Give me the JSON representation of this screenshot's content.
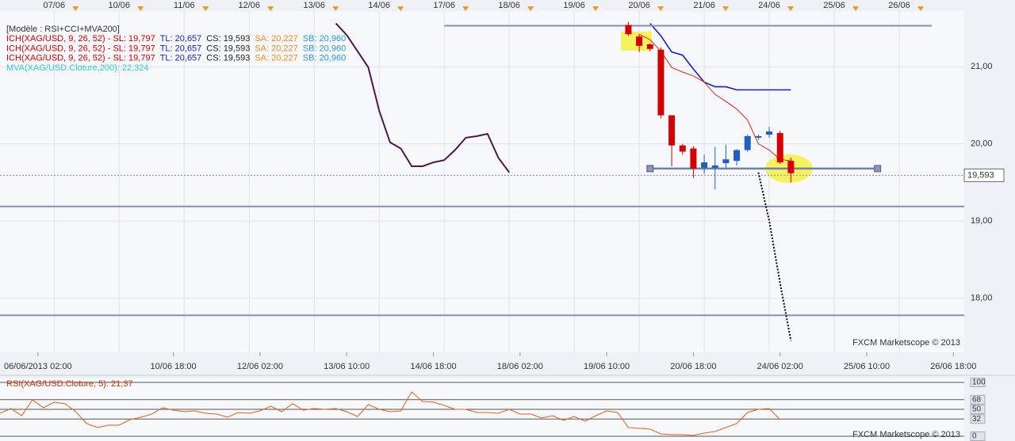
{
  "chart_data": [
    {
      "type": "candlestick",
      "header": "[Modèle : RSI+CCI+MVA200]",
      "indicators": [
        {
          "parts": [
            {
              "text": "ICH(XAG/USD, 9, 26, 52) -  SL: 19,797",
              "color": "#d40000"
            },
            {
              "text": "TL: 20,657",
              "color": "#1a1ad0"
            },
            {
              "text": "CS: 19,593",
              "color": "#222222"
            },
            {
              "text": "SA: 20,227",
              "color": "#f08a24"
            },
            {
              "text": "SB: 20,960",
              "color": "#2a9ad8"
            }
          ]
        },
        {
          "parts": [
            {
              "text": "ICH(XAG/USD, 9, 26, 52) -  SL: 19,797",
              "color": "#d40000"
            },
            {
              "text": "TL: 20,657",
              "color": "#1a1ad0"
            },
            {
              "text": "CS: 19,593",
              "color": "#222222"
            },
            {
              "text": "SA: 20,227",
              "color": "#f08a24"
            },
            {
              "text": "SB: 20,960",
              "color": "#2a9ad8"
            }
          ]
        },
        {
          "parts": [
            {
              "text": "ICH(XAG/USD, 9, 26, 52) -  SL: 19,797",
              "color": "#d40000"
            },
            {
              "text": "TL: 20,657",
              "color": "#1a1ad0"
            },
            {
              "text": "CS: 19,593",
              "color": "#222222"
            },
            {
              "text": "SA: 20,227",
              "color": "#f08a24"
            },
            {
              "text": "SB: 20,960",
              "color": "#2a9ad8"
            }
          ]
        },
        {
          "parts": [
            {
              "text": "MVA(XAG/USD.Cloture,200): 22,324",
              "color": "#33c8d8"
            }
          ]
        }
      ],
      "xlim": [
        0,
        89
      ],
      "top_xticks": [
        {
          "value": 5,
          "label": "07/06"
        },
        {
          "value": 11,
          "label": "10/06"
        },
        {
          "value": 17,
          "label": "11/06"
        },
        {
          "value": 23,
          "label": "12/06"
        },
        {
          "value": 29,
          "label": "13/06"
        },
        {
          "value": 35,
          "label": "14/06"
        },
        {
          "value": 41,
          "label": "17/06"
        },
        {
          "value": 47,
          "label": "18/06"
        },
        {
          "value": 53,
          "label": "19/06"
        },
        {
          "value": 59,
          "label": "20/06"
        },
        {
          "value": 65,
          "label": "21/06"
        },
        {
          "value": 71,
          "label": "24/06"
        },
        {
          "value": 77,
          "label": "25/06"
        },
        {
          "value": 83,
          "label": "26/06"
        }
      ],
      "xticks": [
        {
          "value": 3.5,
          "label": "06/06/2013 02:00"
        },
        {
          "value": 16,
          "label": "10/06 18:00"
        },
        {
          "value": 24,
          "label": "12/06 02:00"
        },
        {
          "value": 32,
          "label": "13/06 10:00"
        },
        {
          "value": 40,
          "label": "14/06 18:00"
        },
        {
          "value": 48,
          "label": "18/06 02:00"
        },
        {
          "value": 56,
          "label": "19/06 10:00"
        },
        {
          "value": 64,
          "label": "20/06 18:00"
        },
        {
          "value": 72,
          "label": "24/06 02:00"
        },
        {
          "value": 80,
          "label": "25/06 10:00"
        },
        {
          "value": 88,
          "label": "26/06 18:00"
        }
      ],
      "ylim": [
        17.3,
        21.72
      ],
      "yticks": [
        {
          "value": 21,
          "label": "21,00"
        },
        {
          "value": 20,
          "label": "20,00"
        },
        {
          "value": 19,
          "label": "19,00"
        },
        {
          "value": 18,
          "label": "18,00"
        }
      ],
      "grid": true,
      "candles": {
        "x": [
          58,
          59,
          60,
          61,
          62,
          63,
          64,
          65,
          66,
          67,
          68,
          69,
          70,
          71,
          72,
          73
        ],
        "open": [
          21.54,
          21.39,
          21.29,
          21.22,
          20.37,
          19.98,
          19.94,
          19.69,
          19.69,
          19.75,
          19.78,
          19.92,
          20.08,
          20.12,
          20.14,
          19.78
        ],
        "high": [
          21.58,
          21.42,
          21.3,
          21.25,
          20.37,
          20.0,
          19.97,
          19.86,
          19.96,
          19.99,
          19.93,
          20.12,
          20.12,
          20.22,
          20.17,
          19.82
        ],
        "low": [
          21.4,
          21.19,
          21.2,
          20.33,
          19.71,
          19.86,
          19.56,
          19.61,
          19.41,
          19.69,
          19.72,
          19.9,
          20.05,
          20.08,
          19.74,
          19.5
        ],
        "close": [
          21.42,
          21.27,
          21.23,
          20.37,
          19.98,
          19.9,
          19.68,
          19.76,
          19.72,
          19.8,
          19.92,
          20.1,
          20.1,
          20.16,
          19.76,
          19.62
        ],
        "up_color": "#1f5fbf",
        "down_color": "#d40000"
      },
      "series": [
        {
          "color": "#4b1a4b",
          "width": 2,
          "x": [
            31,
            32,
            33,
            34,
            35,
            36,
            37,
            38,
            39,
            40,
            41,
            42,
            43,
            44,
            45,
            46,
            47
          ],
          "values": [
            21.56,
            21.41,
            21.2,
            20.99,
            20.43,
            20.02,
            19.94,
            19.71,
            19.71,
            19.76,
            19.79,
            19.92,
            20.08,
            20.1,
            20.13,
            19.82,
            19.63
          ]
        },
        {
          "color": "#1a1ad0",
          "width": 1.6,
          "x": [
            60,
            61,
            62,
            63,
            64,
            65,
            66,
            67,
            68,
            69,
            70,
            71,
            72,
            73
          ],
          "values": [
            21.56,
            21.4,
            21.19,
            21.15,
            20.97,
            20.8,
            20.74,
            20.74,
            20.7,
            20.7,
            20.7,
            20.7,
            20.7,
            20.7
          ]
        },
        {
          "color": "#e02020",
          "width": 1,
          "x": [
            59,
            60,
            61,
            62,
            63,
            64,
            65,
            66,
            67,
            68,
            69,
            70,
            71,
            72,
            73
          ],
          "values": [
            21.42,
            21.35,
            21.2,
            20.99,
            20.93,
            20.88,
            20.8,
            20.64,
            20.55,
            20.45,
            20.31,
            20.0,
            19.92,
            19.8,
            19.78
          ]
        },
        {
          "color": "#000000",
          "width": 2,
          "style": "dotted",
          "x": [
            70,
            71,
            72,
            73
          ],
          "values": [
            19.63,
            19.0,
            18.2,
            17.45
          ]
        },
        {
          "color": "#8591b5",
          "width": 2,
          "x": [
            41,
            86
          ],
          "values": [
            21.53,
            21.53
          ]
        },
        {
          "color": "#7080a8",
          "width": 2.5,
          "handles": true,
          "x": [
            60,
            81
          ],
          "values": [
            19.68,
            19.68
          ]
        }
      ],
      "hlines": [
        {
          "value": 19.19,
          "color": "#8591b5"
        },
        {
          "value": 17.78,
          "color": "#8591b5"
        }
      ],
      "price_label": {
        "value": 19.593,
        "label": "19,593"
      },
      "watermark": "FXCM Marketscope © 2013"
    },
    {
      "type": "line",
      "title": "RSI(XAG/USD.Cloture, 5): 21,37",
      "xlim": [
        0,
        89
      ],
      "ylim": [
        0,
        100
      ],
      "yticks": [
        0,
        32,
        50,
        68,
        100
      ],
      "series": [
        {
          "color": "#e0601a",
          "width": 1,
          "x": [
            0,
            1,
            2,
            3,
            4,
            5,
            6,
            7,
            8,
            9,
            10,
            11,
            12,
            13,
            14,
            15,
            16,
            17,
            18,
            19,
            20,
            21,
            22,
            23,
            24,
            25,
            26,
            27,
            28,
            29,
            30,
            31,
            32,
            33,
            34,
            35,
            36,
            37,
            38,
            39,
            40,
            41,
            42,
            43,
            44,
            45,
            46,
            47,
            48,
            49,
            50,
            51,
            52,
            53,
            54,
            55,
            56,
            57,
            58,
            59,
            60,
            61,
            62,
            63,
            64,
            65,
            66,
            67,
            68,
            69,
            70,
            71,
            72
          ],
          "values": [
            42.6,
            51.5,
            38.2,
            67.6,
            52.9,
            63.2,
            60.3,
            45.6,
            23.5,
            16.2,
            20.6,
            20.6,
            30.9,
            35.3,
            41.2,
            52.9,
            48.5,
            45.6,
            47.1,
            42.6,
            41.2,
            35.3,
            44.1,
            42.6,
            47.1,
            55.9,
            45.6,
            60.3,
            48.5,
            51.5,
            50,
            51.5,
            45.6,
            36.8,
            58.8,
            50,
            45.6,
            47.1,
            82.4,
            64.7,
            63.2,
            57.4,
            50,
            50,
            44.1,
            44.1,
            42.6,
            50,
            41.2,
            41.2,
            33.8,
            38.2,
            29.4,
            36.8,
            27.9,
            38.2,
            47.1,
            44.1,
            16.2,
            14.7,
            13.2,
            4.4,
            2.9,
            2.9,
            1.5,
            5.9,
            8.8,
            16.2,
            23.5,
            44.1,
            50,
            51.5,
            30.9
          ]
        }
      ],
      "watermark": "FXCM Marketscope © 2013"
    }
  ]
}
